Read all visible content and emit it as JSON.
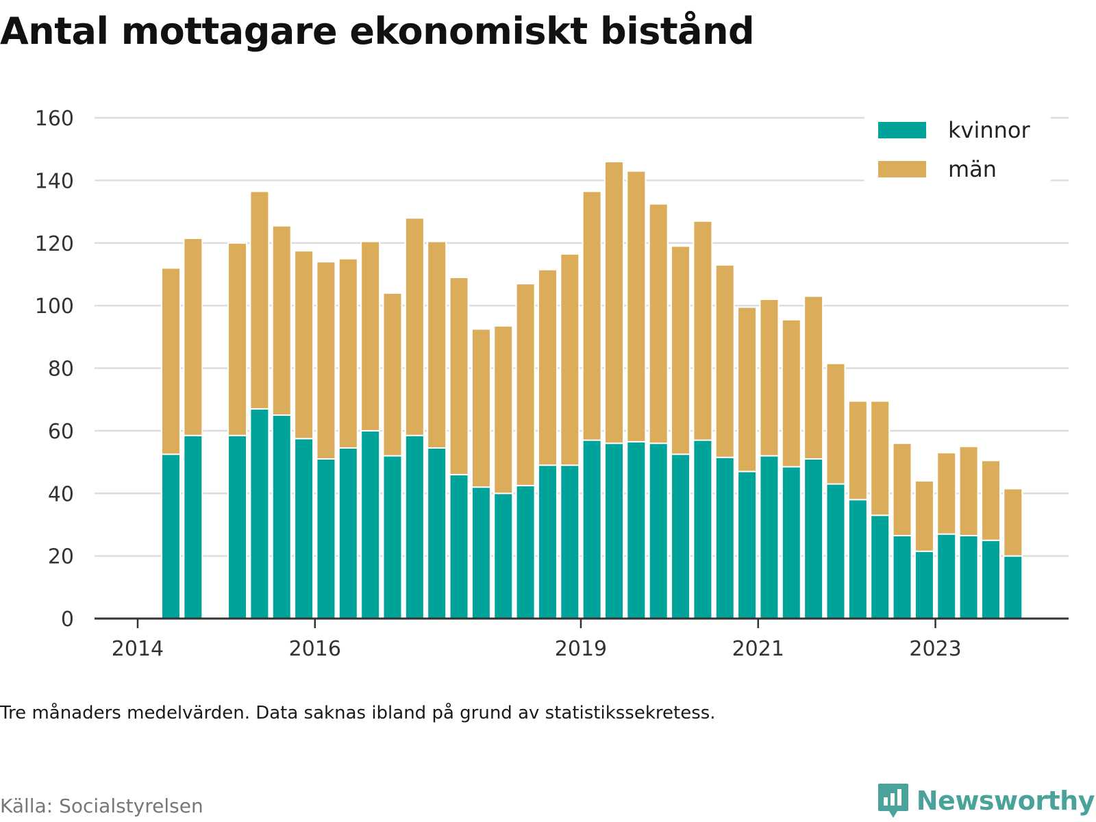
{
  "title": "Antal mottagare ekonomiskt bistånd",
  "note": "Tre månaders medelvärden. Data saknas ibland på grund av statistikssekretess.",
  "source": "Källa: Socialstyrelsen",
  "logo": {
    "text": "Newsworthy",
    "icon": "newsworthy-logo-icon"
  },
  "colors": {
    "kvinnor": "#00a39a",
    "man": "#dbad5a",
    "grid": "#dddddd",
    "axis": "#333333"
  },
  "chart_data": {
    "type": "bar",
    "stacked": true,
    "x_unit": "quarter",
    "yticks": [
      0,
      20,
      40,
      60,
      80,
      100,
      120,
      140,
      160
    ],
    "xticks": [
      "2014",
      "2016",
      "2019",
      "2021",
      "2023"
    ],
    "ylim": [
      0,
      160
    ],
    "grid": true,
    "legend": "top-right",
    "series": [
      {
        "name": "kvinnor",
        "values": [
          52.5,
          58.5,
          null,
          58.5,
          67,
          65,
          57.5,
          51,
          54.5,
          60,
          52,
          58.5,
          54.5,
          46,
          42,
          40,
          42.5,
          49,
          49,
          57,
          56,
          56.5,
          56,
          52.5,
          57,
          51.5,
          47,
          52,
          48.5,
          51,
          43,
          38,
          33,
          26.5,
          21.5,
          27,
          26.5,
          25,
          20
        ]
      },
      {
        "name": "män",
        "values": [
          59.5,
          63,
          null,
          61.5,
          69.5,
          60.5,
          60,
          63,
          60.5,
          60.5,
          52,
          69.5,
          66,
          63,
          50.5,
          53.5,
          64.5,
          62.5,
          67.5,
          79.5,
          90,
          86.5,
          76.5,
          66.5,
          70,
          61.5,
          52.5,
          50,
          47,
          52,
          38.5,
          31.5,
          36.5,
          29.5,
          22.5,
          26,
          28.5,
          25.5,
          21.5
        ]
      }
    ],
    "period_start": [
      "2014 Q2",
      "2014 Q3",
      "2014 Q4",
      "2015 Q1",
      "2015 Q2",
      "2015 Q3",
      "2015 Q4",
      "2016 Q1",
      "2016 Q2",
      "2016 Q3",
      "2016 Q4",
      "2017 Q1",
      "2017 Q2",
      "2017 Q3",
      "2017 Q4",
      "2018 Q1",
      "2018 Q2",
      "2018 Q3",
      "2018 Q4",
      "2019 Q1",
      "2019 Q2",
      "2019 Q3",
      "2019 Q4",
      "2020 Q1",
      "2020 Q2",
      "2020 Q3",
      "2020 Q4",
      "2021 Q1",
      "2021 Q2",
      "2021 Q3",
      "2021 Q4",
      "2022 Q1",
      "2022 Q2",
      "2022 Q3",
      "2022 Q4",
      "2023 Q1",
      "2023 Q2",
      "2023 Q3",
      "2023 Q4"
    ]
  }
}
